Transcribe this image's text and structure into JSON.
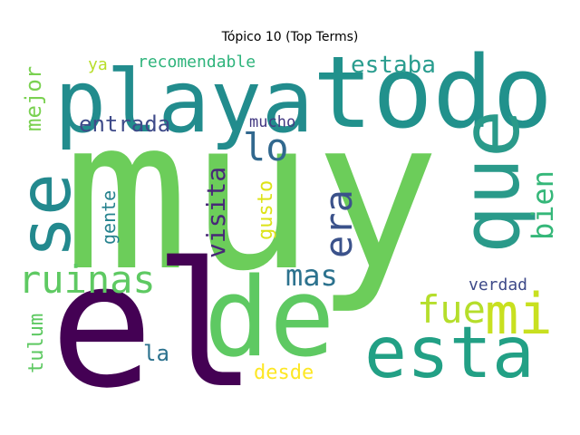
{
  "chart_data": {
    "type": "wordcloud",
    "title": "Tópico 10 (Top Terms)",
    "words": [
      {
        "text": "muy",
        "color": "#6ccd5a"
      },
      {
        "text": "el",
        "color": "#440154"
      },
      {
        "text": "de",
        "color": "#5ec962"
      },
      {
        "text": "todo",
        "color": "#21918c"
      },
      {
        "text": "playa",
        "color": "#228c8d"
      },
      {
        "text": "que",
        "color": "#2a9a8a"
      },
      {
        "text": "se",
        "color": "#23898e"
      },
      {
        "text": "esta",
        "color": "#22a085"
      },
      {
        "text": "mi",
        "color": "#c8e020"
      },
      {
        "text": "ruinas",
        "color": "#5ec962"
      },
      {
        "text": "fue",
        "color": "#b5de2b"
      },
      {
        "text": "lo",
        "color": "#31688e"
      },
      {
        "text": "era",
        "color": "#3b528b"
      },
      {
        "text": "mas",
        "color": "#2c728e"
      },
      {
        "text": "estaba",
        "color": "#2a9d8f"
      },
      {
        "text": "bien",
        "color": "#35b779"
      },
      {
        "text": "visita",
        "color": "#482878"
      },
      {
        "text": "gusto",
        "color": "#dde318"
      },
      {
        "text": "gente",
        "color": "#26828e"
      },
      {
        "text": "entrada",
        "color": "#3e4a89"
      },
      {
        "text": "mejor",
        "color": "#7ad151"
      },
      {
        "text": "tulum",
        "color": "#5ec962"
      },
      {
        "text": "la",
        "color": "#2c728e"
      },
      {
        "text": "recomendable",
        "color": "#2fb47c"
      },
      {
        "text": "desde",
        "color": "#fde725"
      },
      {
        "text": "verdad",
        "color": "#3e4a89"
      },
      {
        "text": "mucho",
        "color": "#443a83"
      },
      {
        "text": "ya",
        "color": "#b8de29"
      }
    ]
  }
}
